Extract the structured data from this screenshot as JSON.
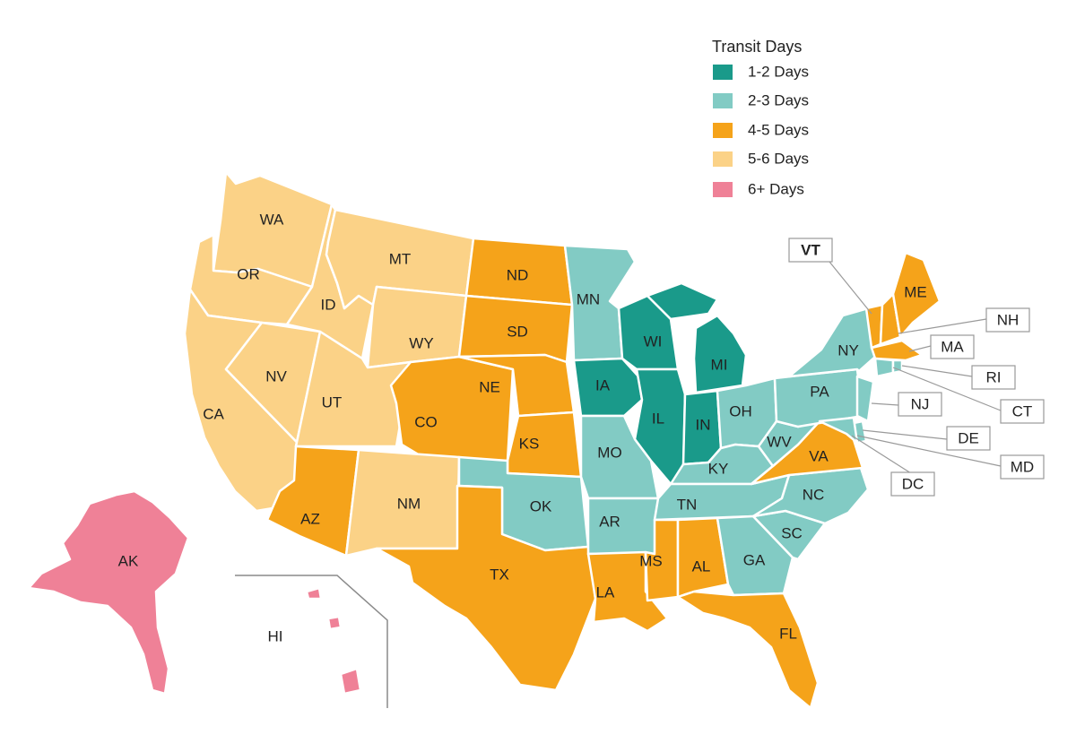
{
  "legend": {
    "title": "Transit Days",
    "items": [
      {
        "label": "1-2 Days",
        "color": "#1a9a8a"
      },
      {
        "label": "2-3 Days",
        "color": "#82cbc4"
      },
      {
        "label": "4-5 Days",
        "color": "#f5a31a"
      },
      {
        "label": "5-6 Days",
        "color": "#fbd287"
      },
      {
        "label": "6+ Days",
        "color": "#ef8197"
      }
    ]
  },
  "states": {
    "WA": {
      "label": "WA",
      "category": "5-6 Days"
    },
    "OR": {
      "label": "OR",
      "category": "5-6 Days"
    },
    "CA": {
      "label": "CA",
      "category": "5-6 Days"
    },
    "ID": {
      "label": "ID",
      "category": "5-6 Days"
    },
    "NV": {
      "label": "NV",
      "category": "5-6 Days"
    },
    "MT": {
      "label": "MT",
      "category": "5-6 Days"
    },
    "WY": {
      "label": "WY",
      "category": "5-6 Days"
    },
    "UT": {
      "label": "UT",
      "category": "5-6 Days"
    },
    "NM": {
      "label": "NM",
      "category": "5-6 Days"
    },
    "AZ": {
      "label": "AZ",
      "category": "4-5 Days"
    },
    "CO": {
      "label": "CO",
      "category": "4-5 Days"
    },
    "ND": {
      "label": "ND",
      "category": "4-5 Days"
    },
    "SD": {
      "label": "SD",
      "category": "4-5 Days"
    },
    "NE": {
      "label": "NE",
      "category": "4-5 Days"
    },
    "KS": {
      "label": "KS",
      "category": "4-5 Days"
    },
    "TX": {
      "label": "TX",
      "category": "4-5 Days"
    },
    "OK": {
      "label": "OK",
      "category": "2-3 Days"
    },
    "MN": {
      "label": "MN",
      "category": "2-3 Days"
    },
    "IA": {
      "label": "IA",
      "category": "1-2 Days"
    },
    "MO": {
      "label": "MO",
      "category": "2-3 Days"
    },
    "AR": {
      "label": "AR",
      "category": "2-3 Days"
    },
    "LA": {
      "label": "LA",
      "category": "4-5 Days"
    },
    "WI": {
      "label": "WI",
      "category": "1-2 Days"
    },
    "IL": {
      "label": "IL",
      "category": "1-2 Days"
    },
    "MI": {
      "label": "MI",
      "category": "1-2 Days"
    },
    "IN": {
      "label": "IN",
      "category": "1-2 Days"
    },
    "OH": {
      "label": "OH",
      "category": "2-3 Days"
    },
    "KY": {
      "label": "KY",
      "category": "2-3 Days"
    },
    "TN": {
      "label": "TN",
      "category": "2-3 Days"
    },
    "MS": {
      "label": "MS",
      "category": "4-5 Days"
    },
    "AL": {
      "label": "AL",
      "category": "4-5 Days"
    },
    "GA": {
      "label": "GA",
      "category": "2-3 Days"
    },
    "FL": {
      "label": "FL",
      "category": "4-5 Days"
    },
    "SC": {
      "label": "SC",
      "category": "2-3 Days"
    },
    "NC": {
      "label": "NC",
      "category": "2-3 Days"
    },
    "VA": {
      "label": "VA",
      "category": "4-5 Days"
    },
    "WV": {
      "label": "WV",
      "category": "2-3 Days"
    },
    "PA": {
      "label": "PA",
      "category": "2-3 Days"
    },
    "NY": {
      "label": "NY",
      "category": "2-3 Days"
    },
    "ME": {
      "label": "ME",
      "category": "4-5 Days"
    },
    "VT": {
      "label": "VT",
      "category": "4-5 Days"
    },
    "NH": {
      "label": "NH",
      "category": "4-5 Days"
    },
    "MA": {
      "label": "MA",
      "category": "4-5 Days"
    },
    "RI": {
      "label": "RI",
      "category": "2-3 Days"
    },
    "CT": {
      "label": "CT",
      "category": "2-3 Days"
    },
    "NJ": {
      "label": "NJ",
      "category": "2-3 Days"
    },
    "DE": {
      "label": "DE",
      "category": "2-3 Days"
    },
    "MD": {
      "label": "MD",
      "category": "2-3 Days"
    },
    "DC": {
      "label": "DC",
      "category": "2-3 Days"
    },
    "AK": {
      "label": "AK",
      "category": "6+ Days"
    },
    "HI": {
      "label": "HI",
      "category": "6+ Days"
    }
  }
}
